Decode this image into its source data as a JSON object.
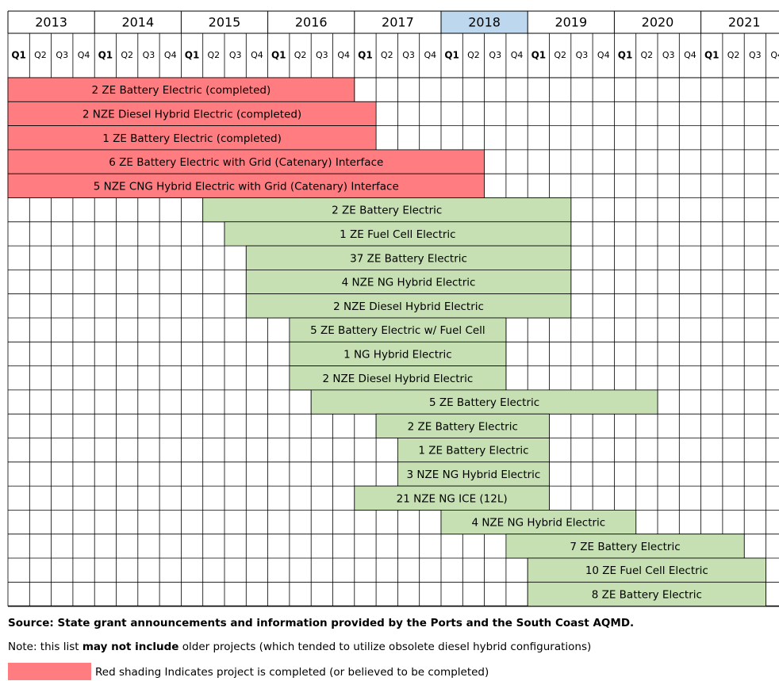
{
  "years": [
    2013,
    2014,
    2015,
    2016,
    2017,
    2018,
    2019,
    2020,
    2021
  ],
  "highlight_year": 2018,
  "quarters": [
    "Q1",
    "Q2",
    "Q3",
    "Q4"
  ],
  "projects": [
    {
      "label": "2 ZE Battery Electric (completed)",
      "start_year": 2013,
      "start_quarter": "Q1",
      "end_year": 2016,
      "end_quarter": "Q4",
      "completed": true
    },
    {
      "label": "2 NZE Diesel Hybrid Electric (completed)",
      "start_year": 2013,
      "start_quarter": "Q1",
      "end_year": 2017,
      "end_quarter": "Q1",
      "completed": true
    },
    {
      "label": "1 ZE Battery Electric (completed)",
      "start_year": 2013,
      "start_quarter": "Q1",
      "end_year": 2017,
      "end_quarter": "Q1",
      "completed": true
    },
    {
      "label": "6 ZE Battery Electric with Grid (Catenary) Interface",
      "start_year": 2013,
      "start_quarter": "Q1",
      "end_year": 2018,
      "end_quarter": "Q2",
      "completed": true
    },
    {
      "label": "5 NZE CNG Hybrid Electric with Grid (Catenary) Interface",
      "start_year": 2013,
      "start_quarter": "Q1",
      "end_year": 2018,
      "end_quarter": "Q2",
      "completed": true
    },
    {
      "label": "2 ZE Battery Electric",
      "start_year": 2015,
      "start_quarter": "Q2",
      "end_year": 2019,
      "end_quarter": "Q2",
      "completed": false
    },
    {
      "label": "1 ZE Fuel Cell Electric",
      "start_year": 2015,
      "start_quarter": "Q3",
      "end_year": 2019,
      "end_quarter": "Q2",
      "completed": false
    },
    {
      "label": "37 ZE Battery Electric",
      "start_year": 2015,
      "start_quarter": "Q4",
      "end_year": 2019,
      "end_quarter": "Q2",
      "completed": false
    },
    {
      "label": "4 NZE NG Hybrid Electric",
      "start_year": 2015,
      "start_quarter": "Q4",
      "end_year": 2019,
      "end_quarter": "Q2",
      "completed": false
    },
    {
      "label": "2 NZE Diesel Hybrid Electric",
      "start_year": 2015,
      "start_quarter": "Q4",
      "end_year": 2019,
      "end_quarter": "Q2",
      "completed": false
    },
    {
      "label": "5 ZE Battery Electric w/ Fuel Cell",
      "start_year": 2016,
      "start_quarter": "Q2",
      "end_year": 2018,
      "end_quarter": "Q3",
      "completed": false
    },
    {
      "label": "1 NG Hybrid Electric",
      "start_year": 2016,
      "start_quarter": "Q2",
      "end_year": 2018,
      "end_quarter": "Q3",
      "completed": false
    },
    {
      "label": "2 NZE Diesel Hybrid Electric",
      "start_year": 2016,
      "start_quarter": "Q2",
      "end_year": 2018,
      "end_quarter": "Q3",
      "completed": false
    },
    {
      "label": "5 ZE Battery Electric",
      "start_year": 2016,
      "start_quarter": "Q3",
      "end_year": 2020,
      "end_quarter": "Q2",
      "completed": false
    },
    {
      "label": "2 ZE Battery Electric",
      "start_year": 2017,
      "start_quarter": "Q2",
      "end_year": 2019,
      "end_quarter": "Q1",
      "completed": false
    },
    {
      "label": "1 ZE Battery Electric",
      "start_year": 2017,
      "start_quarter": "Q3",
      "end_year": 2019,
      "end_quarter": "Q1",
      "completed": false
    },
    {
      "label": "3 NZE NG Hybrid Electric",
      "start_year": 2017,
      "start_quarter": "Q3",
      "end_year": 2019,
      "end_quarter": "Q1",
      "completed": false
    },
    {
      "label": "21 NZE NG ICE (12L)",
      "start_year": 2017,
      "start_quarter": "Q1",
      "end_year": 2019,
      "end_quarter": "Q1",
      "completed": false
    },
    {
      "label": "4 NZE NG Hybrid Electric",
      "start_year": 2018,
      "start_quarter": "Q1",
      "end_year": 2020,
      "end_quarter": "Q1",
      "completed": false
    },
    {
      "label": "7 ZE Battery Electric",
      "start_year": 2018,
      "start_quarter": "Q4",
      "end_year": 2021,
      "end_quarter": "Q2",
      "completed": false
    },
    {
      "label": "10 ZE Fuel Cell Electric",
      "start_year": 2019,
      "start_quarter": "Q1",
      "end_year": 2021,
      "end_quarter": "Q3",
      "completed": false
    },
    {
      "label": "8 ZE Battery Electric",
      "start_year": 2019,
      "start_quarter": "Q1",
      "end_year": 2021,
      "end_quarter": "Q3",
      "completed": false
    }
  ],
  "footer": {
    "source": "Source: State grant announcements and information provided by the Ports and the South Coast AQMD.",
    "note_before": "Note: this list ",
    "note_bold": "may not include",
    "note_after": " older projects (which tended to utilize obsolete diesel hybrid configurations)",
    "legend": "Red shading Indicates project is completed (or believed to be completed)"
  }
}
